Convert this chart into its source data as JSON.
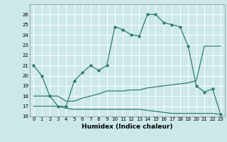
{
  "xlabel": "Humidex (Indice chaleur)",
  "line_color": "#2e7d6e",
  "bg_color": "#cce8e8",
  "grid_color": "#ffffff",
  "ylim": [
    16,
    27
  ],
  "xlim": [
    -0.5,
    23.5
  ],
  "yticks": [
    16,
    17,
    18,
    19,
    20,
    21,
    22,
    23,
    24,
    25,
    26
  ],
  "xticks": [
    0,
    1,
    2,
    3,
    4,
    5,
    6,
    7,
    8,
    9,
    10,
    11,
    12,
    13,
    14,
    15,
    16,
    17,
    18,
    19,
    20,
    21,
    22,
    23
  ],
  "main_x": [
    0,
    1,
    2,
    3,
    4,
    5,
    6,
    7,
    8,
    9,
    10,
    11,
    12,
    13,
    14,
    15,
    16,
    17,
    18,
    19,
    20,
    21,
    22,
    23
  ],
  "main_y": [
    21,
    20,
    18,
    17,
    17,
    19.5,
    20.3,
    21,
    20.5,
    21,
    24.8,
    24.5,
    24,
    23.9,
    26,
    26,
    25.2,
    25,
    24.8,
    22.9,
    19,
    18.4,
    18.7,
    16.2
  ],
  "upper_x": [
    0,
    1,
    2,
    3,
    4,
    5,
    6,
    7,
    8,
    9,
    10,
    11,
    12,
    13,
    14,
    15,
    16,
    17,
    18,
    19,
    20,
    21,
    22,
    23
  ],
  "upper_y": [
    18.0,
    18.0,
    18.0,
    18.0,
    17.5,
    17.5,
    17.8,
    18.0,
    18.2,
    18.5,
    18.5,
    18.5,
    18.6,
    18.6,
    18.8,
    18.9,
    19.0,
    19.1,
    19.2,
    19.3,
    19.5,
    22.9,
    22.9,
    22.9
  ],
  "lower_x": [
    0,
    1,
    2,
    3,
    4,
    5,
    6,
    7,
    8,
    9,
    10,
    11,
    12,
    13,
    14,
    15,
    16,
    17,
    18,
    19,
    20,
    21,
    22,
    23
  ],
  "lower_y": [
    17.0,
    17.0,
    17.0,
    17.0,
    16.8,
    16.7,
    16.7,
    16.7,
    16.7,
    16.7,
    16.7,
    16.7,
    16.7,
    16.7,
    16.6,
    16.5,
    16.4,
    16.3,
    16.3,
    16.3,
    16.3,
    16.3,
    16.3,
    16.2
  ]
}
